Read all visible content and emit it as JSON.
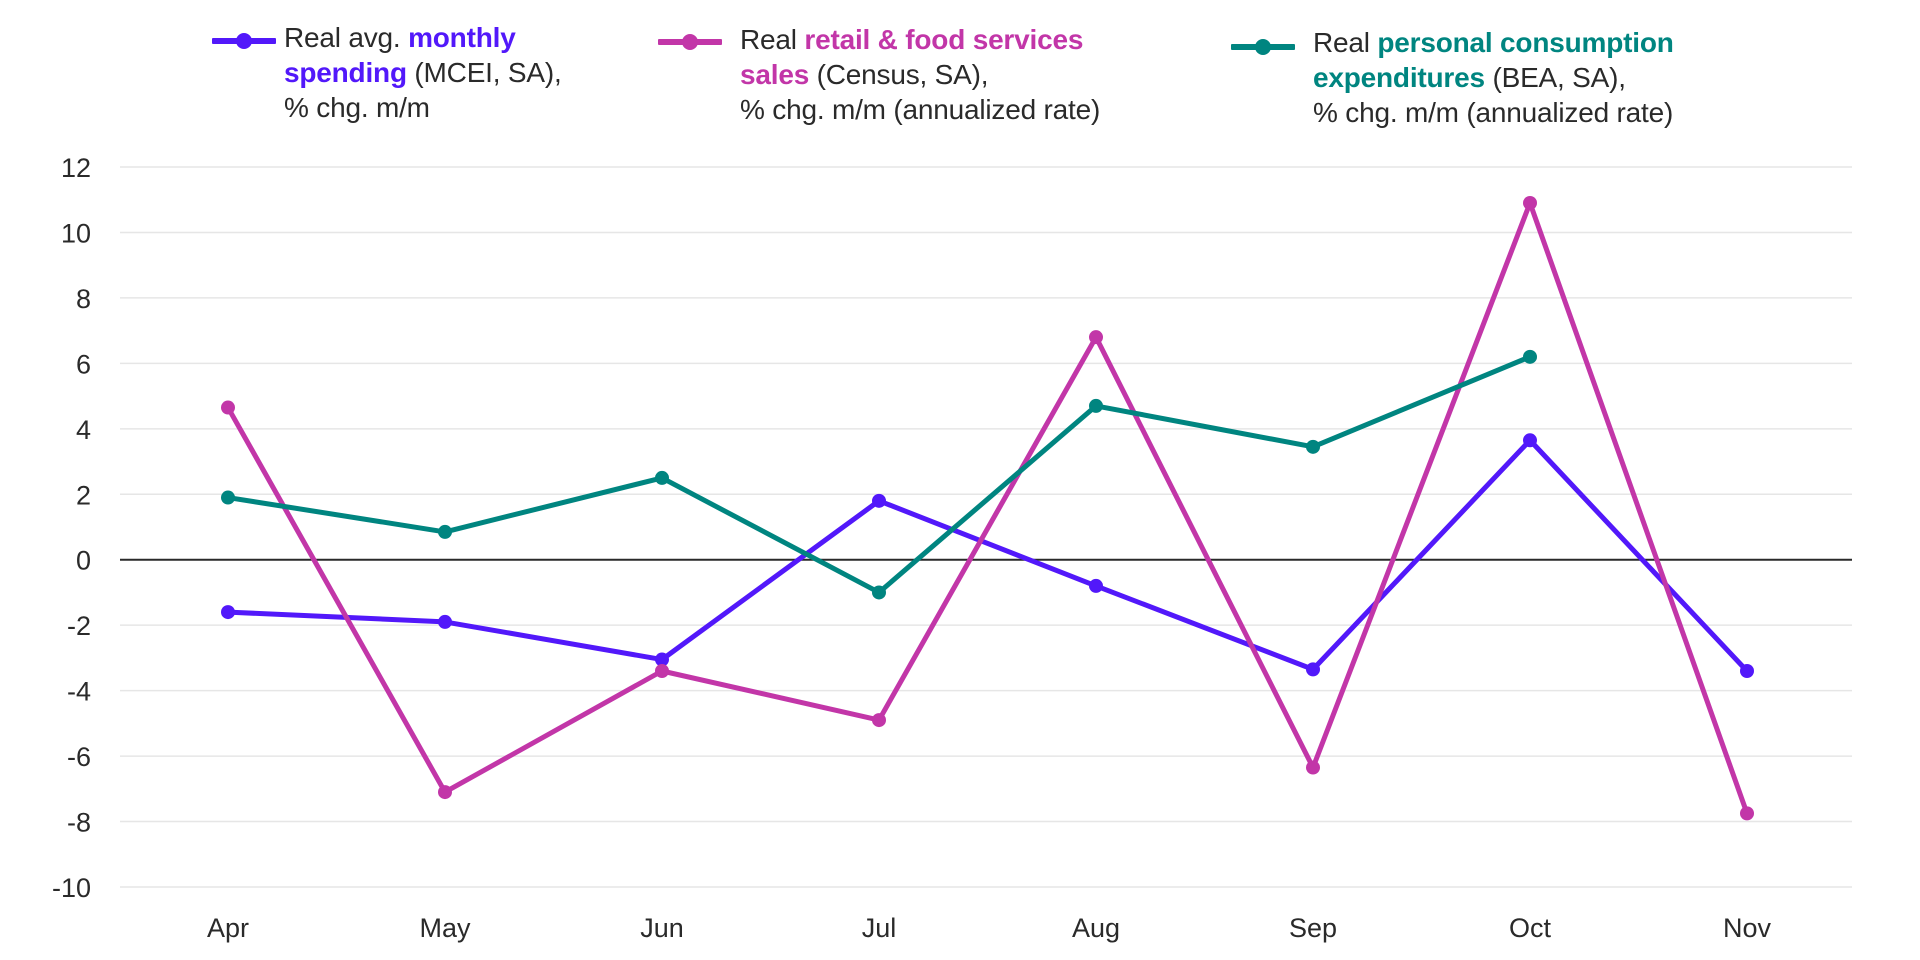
{
  "legend": [
    {
      "line1_prefix": "Real avg. ",
      "line1_bold": "monthly",
      "line2_bold": "spending",
      "line2_suffix": " (MCEI, SA),",
      "line3": "% chg. m/m",
      "color": "#5218FA"
    },
    {
      "line1_prefix": "Real ",
      "line1_bold": "retail & food services",
      "line2_bold": "sales",
      "line2_suffix": " (Census, SA),",
      "line3": "% chg. m/m (annualized rate)",
      "color": "#C236A8"
    },
    {
      "line1_prefix": "Real ",
      "line1_bold": "personal consumption",
      "line2_bold": "expenditures",
      "line2_suffix": " (BEA, SA),",
      "line3": "% chg. m/m (annualized rate)",
      "color": "#008580"
    }
  ],
  "chart_data": {
    "type": "line",
    "title": "",
    "xlabel": "",
    "ylabel": "",
    "categories": [
      "Apr",
      "May",
      "Jun",
      "Jul",
      "Aug",
      "Sep",
      "Oct",
      "Nov"
    ],
    "ylim": [
      -10,
      12
    ],
    "yticks": [
      12,
      10,
      8,
      6,
      4,
      2,
      0,
      -2,
      -4,
      -6,
      -8,
      -10
    ],
    "grid": true,
    "zero_line": true,
    "legend_position": "top",
    "series": [
      {
        "name": "Real avg. monthly spending (MCEI, SA), % chg. m/m",
        "color": "#5218FA",
        "values": [
          -1.6,
          -1.9,
          -3.05,
          1.8,
          -0.8,
          -3.35,
          3.65,
          -3.4
        ]
      },
      {
        "name": "Real retail & food services sales (Census, SA), % chg. m/m (annualized rate)",
        "color": "#C236A8",
        "values": [
          4.65,
          -7.1,
          -3.4,
          -4.9,
          6.8,
          -6.35,
          10.9,
          -7.75
        ]
      },
      {
        "name": "Real personal consumption expenditures (BEA, SA), % chg. m/m (annualized rate)",
        "color": "#008580",
        "values": [
          1.9,
          0.85,
          2.5,
          -1.0,
          4.7,
          3.45,
          6.2,
          null
        ]
      }
    ]
  }
}
